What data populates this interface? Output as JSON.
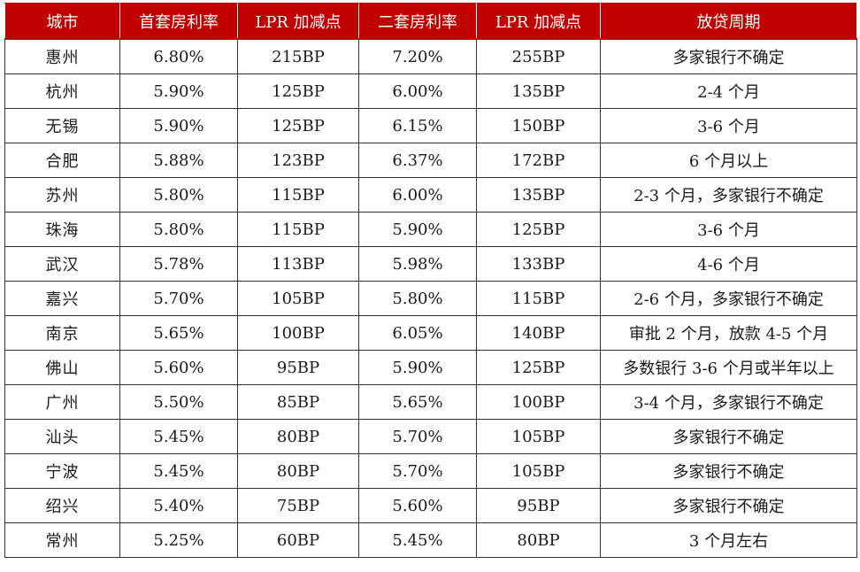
{
  "headers": [
    "城市",
    "首套房利率",
    "LPR 加减点",
    "二套房利率",
    "LPR 加减点",
    "放贷周期"
  ],
  "rows": [
    [
      "惠州",
      "6.80%",
      "215BP",
      "7.20%",
      "255BP",
      "多家银行不确定"
    ],
    [
      "杭州",
      "5.90%",
      "125BP",
      "6.00%",
      "135BP",
      "2-4 个月"
    ],
    [
      "无锡",
      "5.90%",
      "125BP",
      "6.15%",
      "150BP",
      "3-6 个月"
    ],
    [
      "合肥",
      "5.88%",
      "123BP",
      "6.37%",
      "172BP",
      "6 个月以上"
    ],
    [
      "苏州",
      "5.80%",
      "115BP",
      "6.00%",
      "135BP",
      "2-3 个月，多家银行不确定"
    ],
    [
      "珠海",
      "5.80%",
      "115BP",
      "5.90%",
      "125BP",
      "3-6 个月"
    ],
    [
      "武汉",
      "5.78%",
      "113BP",
      "5.98%",
      "133BP",
      "4-6 个月"
    ],
    [
      "嘉兴",
      "5.70%",
      "105BP",
      "5.80%",
      "115BP",
      "2-6 个月，多家银行不确定"
    ],
    [
      "南京",
      "5.65%",
      "100BP",
      "6.05%",
      "140BP",
      "审批 2 个月，放款 4-5 个月"
    ],
    [
      "佛山",
      "5.60%",
      "95BP",
      "5.90%",
      "125BP",
      "多数银行 3-6 个月或半年以上"
    ],
    [
      "广州",
      "5.50%",
      "85BP",
      "5.65%",
      "100BP",
      "3-4 个月，多家银行不确定"
    ],
    [
      "汕头",
      "5.45%",
      "80BP",
      "5.70%",
      "105BP",
      "多家银行不确定"
    ],
    [
      "宁波",
      "5.45%",
      "80BP",
      "5.70%",
      "105BP",
      "多家银行不确定"
    ],
    [
      "绍兴",
      "5.40%",
      "75BP",
      "5.60%",
      "95BP",
      "多家银行不确定"
    ],
    [
      "常州",
      "5.25%",
      "60BP",
      "5.45%",
      "80BP",
      "3 个月左右"
    ]
  ],
  "colors": {
    "header_background": "#c00000",
    "header_text": "#ffffff",
    "border": "#333333"
  }
}
